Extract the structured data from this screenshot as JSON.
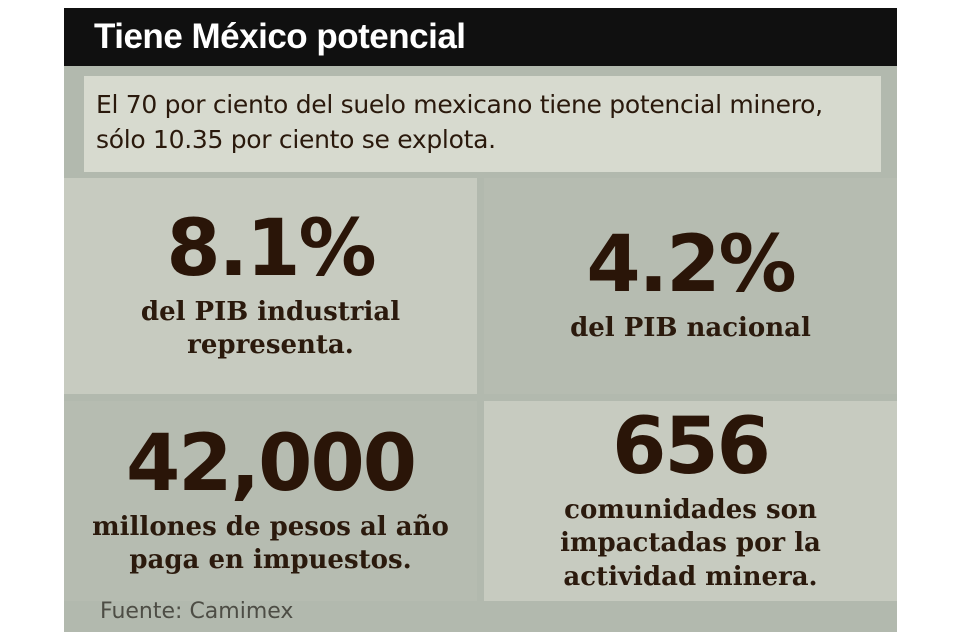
{
  "page": {
    "title": "Tiene México potencial",
    "intro": "El 70 por ciento del suelo mexicano tiene potencial minero,\nsólo 10.35 por ciento se explota.",
    "source": "Fuente: Camimex"
  },
  "stats": [
    {
      "value": "8.1%",
      "caption": "del PIB industrial\nrepresenta."
    },
    {
      "value": "4.2%",
      "caption": "del PIB nacional"
    },
    {
      "value": "42,000",
      "caption": "millones de pesos al año\npaga en impuestos."
    },
    {
      "value": "656",
      "caption": "comunidades son\nimpactadas por la\nactividad minera."
    }
  ],
  "colors": {
    "page_background": "#ffffff",
    "canvas_background": "#b2b9ae",
    "header_background": "#101010",
    "header_text": "#ffffff",
    "intro_background": "#d7dacf",
    "box_light": "#c7cbc0",
    "box_dark": "#b6bcb1",
    "number_text": "#2a1508",
    "body_text": "#2a190c",
    "source_text": "#4d4d45"
  },
  "chart_data": {
    "type": "table",
    "title": "Tiene México potencial",
    "subtitle": "El 70 por ciento del suelo mexicano tiene potencial minero, sólo 10.35 por ciento se explota.",
    "items": [
      {
        "value": 8.1,
        "unit": "% del PIB industrial",
        "label": "del PIB industrial representa."
      },
      {
        "value": 4.2,
        "unit": "% del PIB nacional",
        "label": "del PIB nacional"
      },
      {
        "value": 42000,
        "unit": "millones de pesos al año",
        "label": "millones de pesos al año paga en impuestos."
      },
      {
        "value": 656,
        "unit": "comunidades",
        "label": "comunidades son impactadas por la actividad minera."
      }
    ],
    "source": "Fuente: Camimex"
  }
}
